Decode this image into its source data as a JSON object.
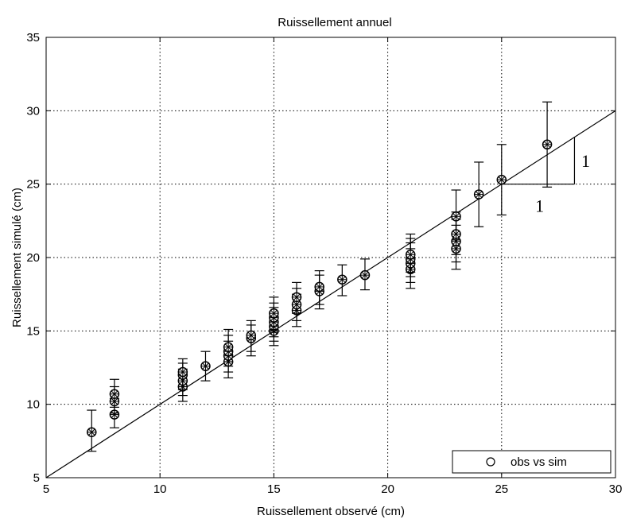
{
  "chart_data": {
    "type": "scatter",
    "title": "Ruissellement annuel",
    "xlabel": "Ruissellement observé (cm)",
    "ylabel": "Ruissellement simulé (cm)",
    "xlim": [
      5,
      30
    ],
    "ylim": [
      5,
      35
    ],
    "x_ticks": [
      5,
      10,
      15,
      20,
      25,
      30
    ],
    "y_ticks": [
      5,
      10,
      15,
      20,
      25,
      30,
      35
    ],
    "x_tick_labels": [
      "5",
      "10",
      "15",
      "20",
      "25",
      "30"
    ],
    "y_tick_labels": [
      "5",
      "10",
      "15",
      "20",
      "25",
      "30",
      "35"
    ],
    "grid": true,
    "legend_position": "bottom-right",
    "series": [
      {
        "name": "obs vs sim",
        "marker": "circle-cross",
        "points": [
          {
            "x": 7,
            "y": 8.1,
            "lo": 6.8,
            "hi": 9.6
          },
          {
            "x": 8,
            "y": 9.3,
            "lo": 8.4,
            "hi": 10.4
          },
          {
            "x": 8,
            "y": 10.2,
            "lo": 9.4,
            "hi": 11.2
          },
          {
            "x": 8,
            "y": 10.7,
            "lo": 9.8,
            "hi": 11.7
          },
          {
            "x": 11,
            "y": 11.2,
            "lo": 10.2,
            "hi": 12.0
          },
          {
            "x": 11,
            "y": 11.6,
            "lo": 10.6,
            "hi": 12.4
          },
          {
            "x": 11,
            "y": 12.0,
            "lo": 11.0,
            "hi": 12.8
          },
          {
            "x": 11,
            "y": 12.2,
            "lo": 11.2,
            "hi": 13.1
          },
          {
            "x": 12,
            "y": 12.6,
            "lo": 11.6,
            "hi": 13.6
          },
          {
            "x": 13,
            "y": 12.9,
            "lo": 11.8,
            "hi": 13.9
          },
          {
            "x": 13,
            "y": 13.3,
            "lo": 12.2,
            "hi": 14.3
          },
          {
            "x": 13,
            "y": 13.6,
            "lo": 12.6,
            "hi": 14.7
          },
          {
            "x": 13,
            "y": 13.9,
            "lo": 12.9,
            "hi": 15.1
          },
          {
            "x": 14,
            "y": 14.5,
            "lo": 13.3,
            "hi": 15.4
          },
          {
            "x": 14,
            "y": 14.7,
            "lo": 13.6,
            "hi": 15.7
          },
          {
            "x": 15,
            "y": 15.0,
            "lo": 14.0,
            "hi": 16.0
          },
          {
            "x": 15,
            "y": 15.3,
            "lo": 14.3,
            "hi": 16.3
          },
          {
            "x": 15,
            "y": 15.6,
            "lo": 14.6,
            "hi": 16.6
          },
          {
            "x": 15,
            "y": 15.9,
            "lo": 14.9,
            "hi": 16.9
          },
          {
            "x": 15,
            "y": 16.2,
            "lo": 15.1,
            "hi": 17.3
          },
          {
            "x": 16,
            "y": 16.4,
            "lo": 15.3,
            "hi": 17.5
          },
          {
            "x": 16,
            "y": 16.8,
            "lo": 15.7,
            "hi": 17.9
          },
          {
            "x": 16,
            "y": 17.3,
            "lo": 16.2,
            "hi": 18.3
          },
          {
            "x": 17,
            "y": 17.7,
            "lo": 16.5,
            "hi": 18.8
          },
          {
            "x": 17,
            "y": 18.0,
            "lo": 16.8,
            "hi": 19.1
          },
          {
            "x": 18,
            "y": 18.5,
            "lo": 17.4,
            "hi": 19.5
          },
          {
            "x": 19,
            "y": 18.8,
            "lo": 17.8,
            "hi": 19.9
          },
          {
            "x": 21,
            "y": 19.2,
            "lo": 17.9,
            "hi": 20.6
          },
          {
            "x": 21,
            "y": 19.6,
            "lo": 18.3,
            "hi": 21.0
          },
          {
            "x": 21,
            "y": 19.9,
            "lo": 18.7,
            "hi": 21.3
          },
          {
            "x": 21,
            "y": 20.2,
            "lo": 19.0,
            "hi": 21.6
          },
          {
            "x": 23,
            "y": 20.6,
            "lo": 19.2,
            "hi": 22.2
          },
          {
            "x": 23,
            "y": 21.1,
            "lo": 19.7,
            "hi": 22.6
          },
          {
            "x": 23,
            "y": 21.6,
            "lo": 20.2,
            "hi": 23.1
          },
          {
            "x": 23,
            "y": 22.8,
            "lo": 21.2,
            "hi": 24.6
          },
          {
            "x": 24,
            "y": 24.3,
            "lo": 22.1,
            "hi": 26.5
          },
          {
            "x": 25,
            "y": 25.3,
            "lo": 22.9,
            "hi": 27.7
          },
          {
            "x": 27,
            "y": 27.7,
            "lo": 24.8,
            "hi": 30.6
          }
        ]
      }
    ],
    "reference_line": {
      "from": [
        5,
        5
      ],
      "to": [
        30,
        30
      ]
    },
    "slope_triangle": {
      "x0": 25,
      "x1": 28.2,
      "y0": 25,
      "y1": 28.2,
      "label_horizontal": "1",
      "label_vertical": "1"
    }
  },
  "colors": {
    "background": "#ffffff",
    "axes": "#000000",
    "grid": "#000000",
    "marker": "#000000"
  }
}
